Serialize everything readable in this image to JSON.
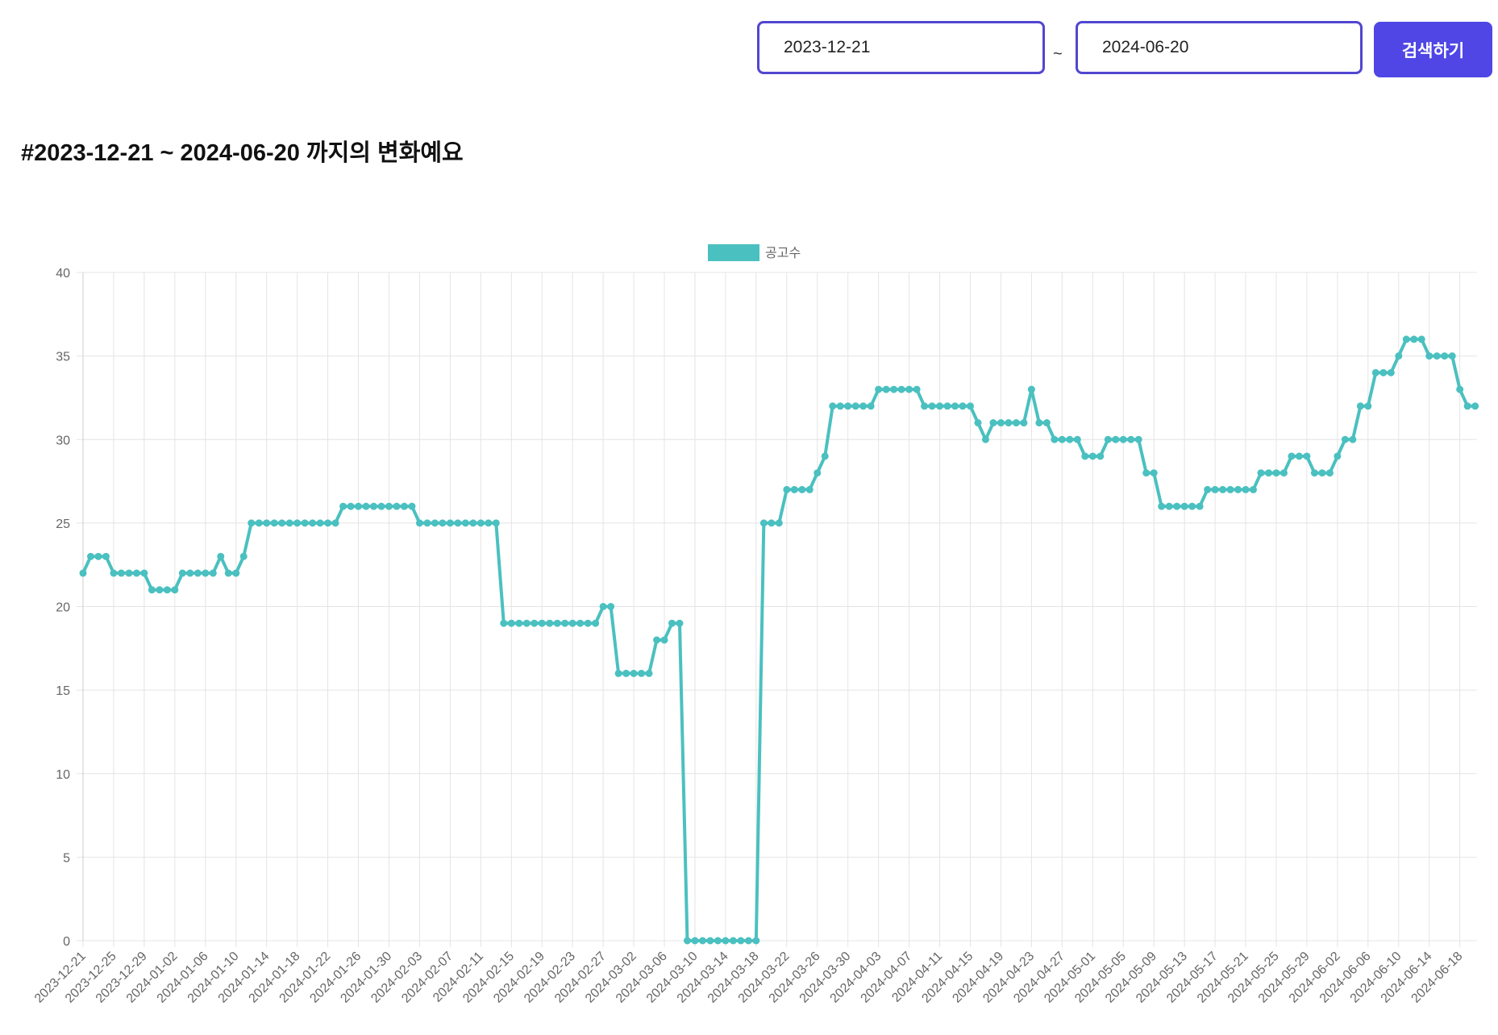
{
  "filters": {
    "start": "2023-12-21",
    "separator": "~",
    "end": "2024-06-20",
    "button": "검색하기"
  },
  "heading": "#2023-12-21 ~ 2024-06-20 까지의 변화예요",
  "chart_data": {
    "type": "line",
    "categories": [
      "2023-12-21",
      null,
      null,
      null,
      "2023-12-25",
      null,
      null,
      null,
      "2023-12-29",
      null,
      null,
      null,
      "2024-01-02",
      null,
      null,
      null,
      "2024-01-06",
      null,
      null,
      null,
      "2024-01-10",
      null,
      null,
      null,
      "2024-01-14",
      null,
      null,
      null,
      "2024-01-18",
      null,
      null,
      null,
      "2024-01-22",
      null,
      null,
      null,
      "2024-01-26",
      null,
      null,
      null,
      "2024-01-30",
      null,
      null,
      null,
      "2024-02-03",
      null,
      null,
      null,
      "2024-02-07",
      null,
      null,
      null,
      "2024-02-11",
      null,
      null,
      null,
      "2024-02-15",
      null,
      null,
      null,
      "2024-02-19",
      null,
      null,
      null,
      "2024-02-23",
      null,
      null,
      null,
      "2024-02-27",
      null,
      null,
      null,
      "2024-03-02",
      null,
      null,
      null,
      "2024-03-06",
      null,
      null,
      null,
      "2024-03-10",
      null,
      null,
      null,
      "2024-03-14",
      null,
      null,
      null,
      "2024-03-18",
      null,
      null,
      null,
      "2024-03-22",
      null,
      null,
      null,
      "2024-03-26",
      null,
      null,
      null,
      "2024-03-30",
      null,
      null,
      null,
      "2024-04-03",
      null,
      null,
      null,
      "2024-04-07",
      null,
      null,
      null,
      "2024-04-11",
      null,
      null,
      null,
      "2024-04-15",
      null,
      null,
      null,
      "2024-04-19",
      null,
      null,
      null,
      "2024-04-23",
      null,
      null,
      null,
      "2024-04-27",
      null,
      null,
      null,
      "2024-05-01",
      null,
      null,
      null,
      "2024-05-05",
      null,
      null,
      null,
      "2024-05-09",
      null,
      null,
      null,
      "2024-05-13",
      null,
      null,
      null,
      "2024-05-17",
      null,
      null,
      null,
      "2024-05-21",
      null,
      null,
      null,
      "2024-05-25",
      null,
      null,
      null,
      "2024-05-29",
      null,
      null,
      null,
      "2024-06-02",
      null,
      null,
      null,
      "2024-06-06",
      null,
      null,
      null,
      "2024-06-10",
      null,
      null,
      null,
      "2024-06-14",
      null,
      null,
      null,
      "2024-06-18",
      null,
      null
    ],
    "series": [
      {
        "name": "공고수",
        "color": "#4bc0c0",
        "values": [
          22,
          23,
          23,
          23,
          22,
          22,
          22,
          22,
          22,
          21,
          21,
          21,
          21,
          22,
          22,
          22,
          22,
          22,
          23,
          22,
          22,
          23,
          25,
          25,
          25,
          25,
          25,
          25,
          25,
          25,
          25,
          25,
          25,
          25,
          26,
          26,
          26,
          26,
          26,
          26,
          26,
          26,
          26,
          26,
          25,
          25,
          25,
          25,
          25,
          25,
          25,
          25,
          25,
          25,
          25,
          19,
          19,
          19,
          19,
          19,
          19,
          19,
          19,
          19,
          19,
          19,
          19,
          19,
          20,
          20,
          16,
          16,
          16,
          16,
          16,
          18,
          18,
          19,
          19,
          0,
          0,
          0,
          0,
          0,
          0,
          0,
          0,
          0,
          0,
          25,
          25,
          25,
          27,
          27,
          27,
          27,
          28,
          29,
          32,
          32,
          32,
          32,
          32,
          32,
          33,
          33,
          33,
          33,
          33,
          33,
          32,
          32,
          32,
          32,
          32,
          32,
          32,
          31,
          30,
          31,
          31,
          31,
          31,
          31,
          33,
          31,
          31,
          30,
          30,
          30,
          30,
          29,
          29,
          29,
          30,
          30,
          30,
          30,
          30,
          28,
          28,
          26,
          26,
          26,
          26,
          26,
          26,
          27,
          27,
          27,
          27,
          27,
          27,
          27,
          28,
          28,
          28,
          28,
          29,
          29,
          29,
          28,
          28,
          28,
          29,
          30,
          30,
          32,
          32,
          34,
          34,
          34,
          35,
          36,
          36,
          36,
          35,
          35,
          35,
          35,
          33,
          32,
          32
        ]
      }
    ],
    "ylim": [
      0,
      40
    ],
    "yticks": [
      0,
      5,
      10,
      15,
      20,
      25,
      30,
      35,
      40
    ],
    "grid": true,
    "legend": "top"
  }
}
